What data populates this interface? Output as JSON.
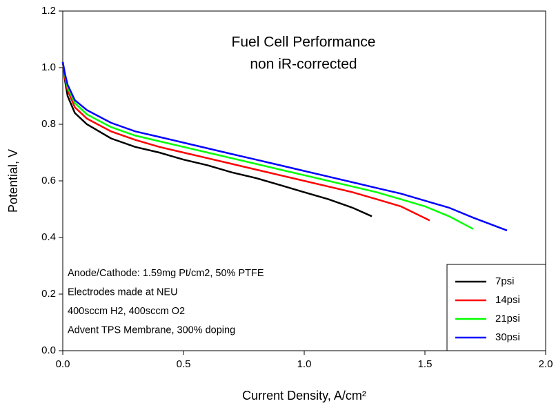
{
  "chart_data": {
    "type": "line",
    "title": "Fuel Cell Performance",
    "subtitle": "non iR-corrected",
    "xlabel": "Current Density, A/cm²",
    "ylabel": "Potential, V",
    "annotations": [
      "Anode/Cathode: 1.59mg Pt/cm2, 50% PTFE",
      "Electrodes made at NEU",
      "400sccm H2, 400sccm O2",
      "Advent TPS Membrane, 300% doping"
    ],
    "xlim": [
      0,
      2
    ],
    "ylim": [
      0,
      1.2
    ],
    "xticks": [
      {
        "value": 0,
        "label": "0.0"
      },
      0.5,
      {
        "value": 1,
        "label": "1.0"
      },
      1.5,
      {
        "value": 2,
        "label": "2.0"
      }
    ],
    "yticks": [
      {
        "value": 0,
        "label": "0.0"
      },
      0.2,
      0.4,
      0.6,
      0.8,
      {
        "value": 1,
        "label": "1.0"
      },
      1.2
    ],
    "legend": "lower right",
    "series": [
      {
        "name": "7psi",
        "color": "#000000",
        "x": [
          0,
          0.01,
          0.02,
          0.05,
          0.1,
          0.2,
          0.3,
          0.4,
          0.5,
          0.6,
          0.7,
          0.8,
          0.9,
          1.0,
          1.1,
          1.2,
          1.28
        ],
        "values": [
          1.02,
          0.95,
          0.9,
          0.84,
          0.8,
          0.75,
          0.72,
          0.7,
          0.675,
          0.655,
          0.63,
          0.61,
          0.585,
          0.56,
          0.535,
          0.505,
          0.475
        ]
      },
      {
        "name": "14psi",
        "color": "#ff0000",
        "x": [
          0,
          0.01,
          0.02,
          0.05,
          0.1,
          0.2,
          0.3,
          0.4,
          0.5,
          0.6,
          0.7,
          0.8,
          0.9,
          1.0,
          1.1,
          1.2,
          1.3,
          1.4,
          1.52
        ],
        "values": [
          1.02,
          0.96,
          0.92,
          0.86,
          0.82,
          0.775,
          0.745,
          0.72,
          0.7,
          0.68,
          0.66,
          0.64,
          0.62,
          0.6,
          0.58,
          0.56,
          0.535,
          0.51,
          0.46
        ]
      },
      {
        "name": "21psi",
        "color": "#00ff00",
        "x": [
          0,
          0.01,
          0.02,
          0.05,
          0.1,
          0.2,
          0.3,
          0.4,
          0.5,
          0.6,
          0.7,
          0.8,
          0.9,
          1.0,
          1.1,
          1.2,
          1.3,
          1.4,
          1.5,
          1.6,
          1.7
        ],
        "values": [
          1.02,
          0.97,
          0.93,
          0.875,
          0.835,
          0.79,
          0.76,
          0.74,
          0.72,
          0.7,
          0.68,
          0.66,
          0.64,
          0.62,
          0.6,
          0.58,
          0.56,
          0.535,
          0.51,
          0.475,
          0.43
        ]
      },
      {
        "name": "30psi",
        "color": "#0000ff",
        "x": [
          0,
          0.01,
          0.02,
          0.05,
          0.1,
          0.2,
          0.3,
          0.4,
          0.5,
          0.6,
          0.7,
          0.8,
          0.9,
          1.0,
          1.1,
          1.2,
          1.3,
          1.4,
          1.5,
          1.6,
          1.7,
          1.84
        ],
        "values": [
          1.02,
          0.975,
          0.94,
          0.885,
          0.85,
          0.805,
          0.775,
          0.755,
          0.735,
          0.715,
          0.695,
          0.675,
          0.655,
          0.635,
          0.615,
          0.595,
          0.575,
          0.555,
          0.53,
          0.505,
          0.47,
          0.425
        ]
      }
    ]
  }
}
